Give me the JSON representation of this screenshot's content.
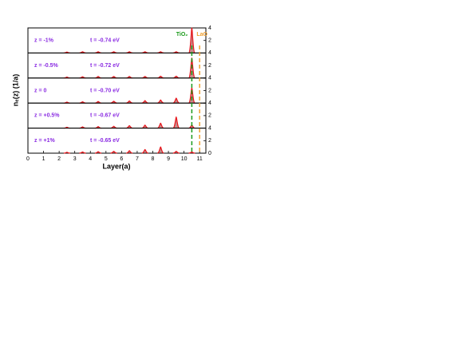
{
  "chart_data": {
    "type": "line",
    "x_label": "Layer(a)",
    "y_label": "nₑ(z) (1/a)",
    "xlim": [
      0,
      11.4
    ],
    "xticks": [
      0,
      1,
      2,
      3,
      4,
      5,
      6,
      7,
      8,
      9,
      10,
      11
    ],
    "ylim": [
      0,
      4
    ],
    "yticks": [
      0,
      2,
      4
    ],
    "x": [
      2.5,
      3.5,
      4.5,
      5.5,
      6.5,
      7.5,
      8.5,
      9.5,
      10.5
    ],
    "color": "#e8141a",
    "label_color": "#8a2be2",
    "panels": [
      {
        "strain": "z = -1%",
        "hopping": "t = -0.74 eV",
        "values": [
          0.15,
          0.2,
          0.2,
          0.2,
          0.2,
          0.2,
          0.2,
          0.2,
          4.0
        ]
      },
      {
        "strain": "z = -0.5%",
        "hopping": "t = -0.72 eV",
        "values": [
          0.15,
          0.2,
          0.25,
          0.25,
          0.25,
          0.25,
          0.3,
          0.3,
          3.2
        ]
      },
      {
        "strain": "z = 0",
        "hopping": "t = -0.70 eV",
        "values": [
          0.15,
          0.2,
          0.25,
          0.3,
          0.35,
          0.4,
          0.5,
          0.8,
          2.5
        ]
      },
      {
        "strain": "z = +0.5%",
        "hopping": "t = -0.67 eV",
        "values": [
          0.15,
          0.2,
          0.25,
          0.3,
          0.4,
          0.5,
          0.8,
          1.8,
          0.5
        ]
      },
      {
        "strain": "z = +1%",
        "hopping": "t = -0.65 eV",
        "values": [
          0.15,
          0.2,
          0.25,
          0.3,
          0.4,
          0.6,
          1.0,
          0.3,
          0.2
        ]
      }
    ],
    "annotations": [
      {
        "text": "TiO₂",
        "x": 10.5,
        "color": "#1a9a1a"
      },
      {
        "text": "LaO",
        "x": 11,
        "color": "#f0a030"
      }
    ]
  }
}
